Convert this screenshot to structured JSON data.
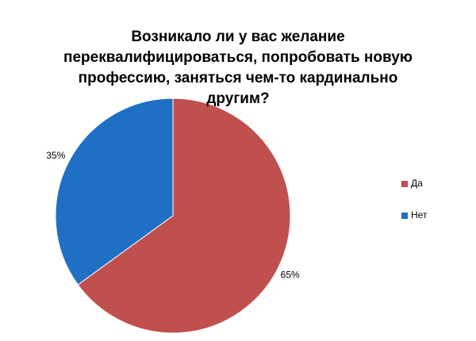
{
  "chart_data": {
    "type": "pie",
    "title": "Возникало ли у вас желание переквалифицироваться, попробовать новую профессию, заняться чем-то кардинально другим?",
    "categories": [
      "Да",
      "Нет"
    ],
    "values": [
      65,
      35
    ],
    "value_labels": [
      "65%",
      "35%"
    ],
    "colors": [
      "#c0504d",
      "#1f6fc5"
    ],
    "legend": "right"
  }
}
